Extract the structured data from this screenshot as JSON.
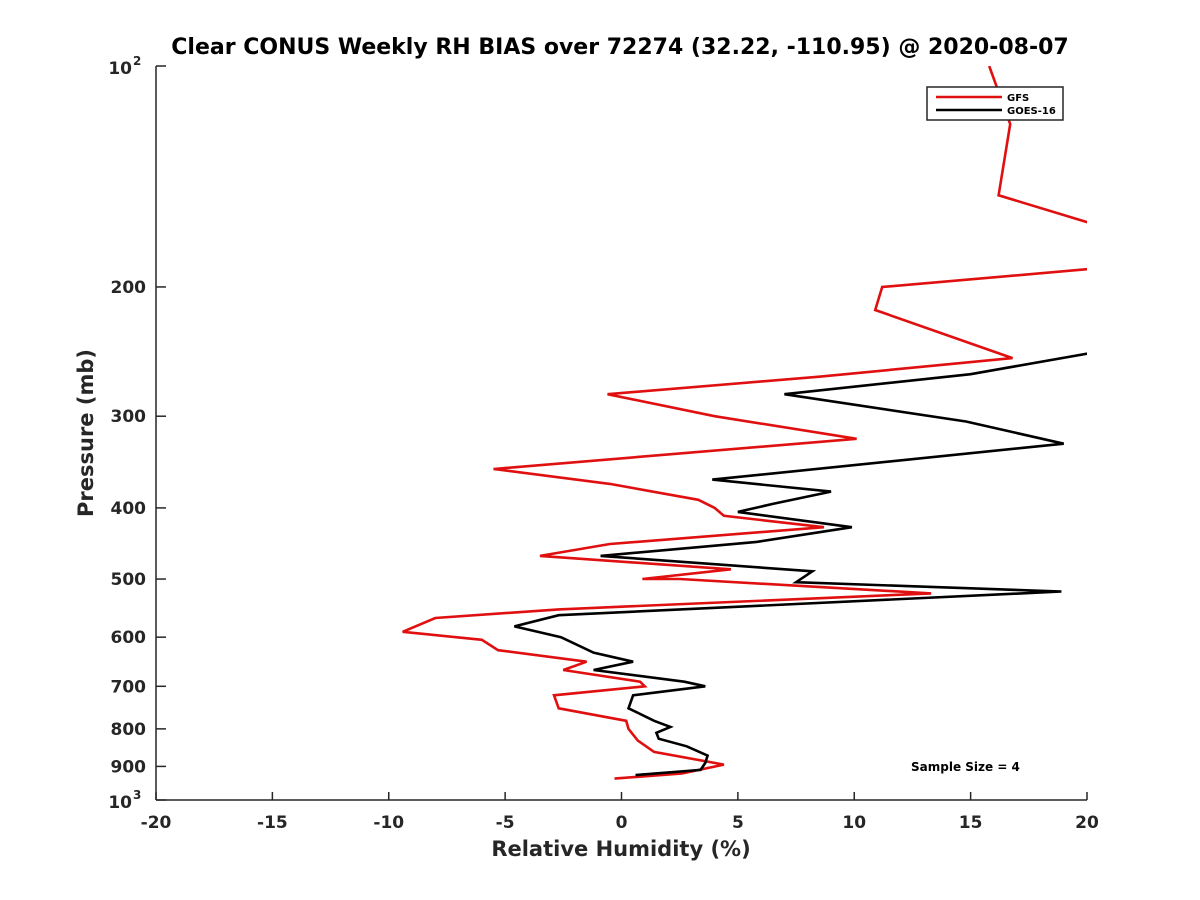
{
  "chart_data": {
    "type": "line",
    "title": "Clear CONUS Weekly RH BIAS over 72274 (32.22, -110.95) @ 2020-08-07",
    "xlabel": "Relative Humidity (%)",
    "ylabel": "Pressure (mb)",
    "xlim": [
      -20,
      20
    ],
    "ylim": [
      100,
      1000
    ],
    "y_scale": "log",
    "y_reversed": true,
    "grid": false,
    "legend_position": "top-right",
    "x_ticks": [
      "-20",
      "-15",
      "-10",
      "-5",
      "0",
      "5",
      "10",
      "15",
      "20"
    ],
    "y_ticks": [
      {
        "value": 100,
        "base": "10",
        "exp": "2"
      },
      {
        "value": 200,
        "label": "200"
      },
      {
        "value": 300,
        "label": "300"
      },
      {
        "value": 400,
        "label": "400"
      },
      {
        "value": 500,
        "label": "500"
      },
      {
        "value": 600,
        "label": "600"
      },
      {
        "value": 700,
        "label": "700"
      },
      {
        "value": 800,
        "label": "800"
      },
      {
        "value": 900,
        "label": "900"
      },
      {
        "value": 1000,
        "base": "10",
        "exp": "3"
      }
    ],
    "annotation": "Sample Size = 4",
    "series": [
      {
        "name": "GFS",
        "color": "#e01010",
        "points": [
          [
            15.8,
            100
          ],
          [
            16.7,
            120
          ],
          [
            16.2,
            150
          ],
          [
            20.5,
            165
          ],
          [
            21.0,
            188
          ],
          [
            11.2,
            200
          ],
          [
            10.9,
            215
          ],
          [
            16.8,
            250
          ],
          [
            8.5,
            265
          ],
          [
            -0.6,
            280
          ],
          [
            4.0,
            300
          ],
          [
            10.1,
            322
          ],
          [
            -5.5,
            354
          ],
          [
            -0.5,
            371
          ],
          [
            3.3,
            390
          ],
          [
            4.0,
            400
          ],
          [
            4.4,
            410
          ],
          [
            8.7,
            425
          ],
          [
            -0.5,
            448
          ],
          [
            -3.5,
            465
          ],
          [
            4.7,
            485
          ],
          [
            0.9,
            500
          ],
          [
            2.5,
            500
          ],
          [
            13.3,
            523
          ],
          [
            -2.7,
            550
          ],
          [
            -8.0,
            565
          ],
          [
            -9.4,
            590
          ],
          [
            -6.0,
            605
          ],
          [
            -5.3,
            625
          ],
          [
            -1.5,
            648
          ],
          [
            -2.5,
            665
          ],
          [
            0.8,
            690
          ],
          [
            1.0,
            700
          ],
          [
            -2.9,
            720
          ],
          [
            -2.7,
            750
          ],
          [
            0.2,
            780
          ],
          [
            0.3,
            800
          ],
          [
            0.7,
            830
          ],
          [
            1.4,
            860
          ],
          [
            4.4,
            895
          ],
          [
            2.6,
            920
          ],
          [
            -0.3,
            935
          ]
        ]
      },
      {
        "name": "GOES-16",
        "color": "#000000",
        "points": [
          [
            20.5,
            245
          ],
          [
            15.0,
            263
          ],
          [
            7.0,
            280
          ],
          [
            14.8,
            305
          ],
          [
            19.0,
            327
          ],
          [
            3.9,
            366
          ],
          [
            9.0,
            380
          ],
          [
            6.5,
            395
          ],
          [
            5.0,
            405
          ],
          [
            9.9,
            425
          ],
          [
            5.8,
            445
          ],
          [
            -0.9,
            465
          ],
          [
            8.2,
            488
          ],
          [
            7.5,
            505
          ],
          [
            18.9,
            520
          ],
          [
            -2.7,
            560
          ],
          [
            -4.6,
            580
          ],
          [
            -2.6,
            600
          ],
          [
            -1.2,
            630
          ],
          [
            0.5,
            648
          ],
          [
            -1.2,
            665
          ],
          [
            2.7,
            690
          ],
          [
            3.6,
            700
          ],
          [
            0.5,
            720
          ],
          [
            0.3,
            750
          ],
          [
            1.4,
            780
          ],
          [
            2.1,
            795
          ],
          [
            1.5,
            810
          ],
          [
            1.6,
            825
          ],
          [
            2.8,
            845
          ],
          [
            3.7,
            870
          ],
          [
            3.6,
            890
          ],
          [
            3.4,
            910
          ],
          [
            0.6,
            925
          ]
        ]
      }
    ]
  }
}
